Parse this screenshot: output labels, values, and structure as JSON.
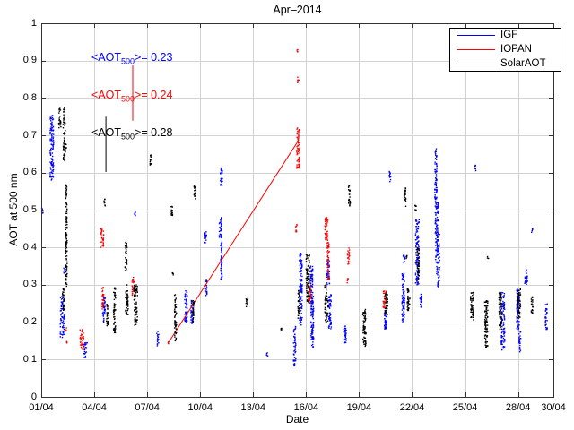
{
  "chart_data": {
    "type": "scatter",
    "title": "Apr–2014",
    "xlabel": "Date",
    "ylabel": "AOT at 500 nm",
    "x_range_days": [
      1,
      30
    ],
    "ylim": [
      0,
      1
    ],
    "grid": true,
    "legend_position": "top-right",
    "x_ticks": [
      {
        "day": 1,
        "label": "01/04"
      },
      {
        "day": 4,
        "label": "04/04"
      },
      {
        "day": 7,
        "label": "07/04"
      },
      {
        "day": 10,
        "label": "10/04"
      },
      {
        "day": 13,
        "label": "13/04"
      },
      {
        "day": 16,
        "label": "16/04"
      },
      {
        "day": 19,
        "label": "19/04"
      },
      {
        "day": 22,
        "label": "22/04"
      },
      {
        "day": 25,
        "label": "25/04"
      },
      {
        "day": 28,
        "label": "28/04"
      },
      {
        "day": 30,
        "label": "30/04"
      }
    ],
    "y_ticks": [
      {
        "value": 0,
        "label": "0"
      },
      {
        "value": 0.1,
        "label": "0.1"
      },
      {
        "value": 0.2,
        "label": "0.2"
      },
      {
        "value": 0.3,
        "label": "0.3"
      },
      {
        "value": 0.4,
        "label": "0.4"
      },
      {
        "value": 0.5,
        "label": "0.5"
      },
      {
        "value": 0.6,
        "label": "0.6"
      },
      {
        "value": 0.7,
        "label": "0.7"
      },
      {
        "value": 0.8,
        "label": "0.8"
      },
      {
        "value": 0.9,
        "label": "0.9"
      },
      {
        "value": 1,
        "label": "1"
      }
    ],
    "annotations": [
      {
        "series": "IGF",
        "pre": "<AOT",
        "sub": "500",
        "post": ">= 0.23",
        "mean": 0.23,
        "color": "#0000ff"
      },
      {
        "series": "IOPAN",
        "pre": "<AOT",
        "sub": "500",
        "post": ">= 0.24",
        "mean": 0.24,
        "color": "#ff0000"
      },
      {
        "series": "SolarAOT",
        "pre": "<AOT",
        "sub": "500",
        "post": ">= 0.28",
        "mean": 0.28,
        "color": "#000000"
      }
    ],
    "series": [
      {
        "name": "IGF",
        "color": "#0000ff",
        "clusters": [
          [
            1.08,
            0.49,
            0.505,
            1
          ],
          [
            1.6,
            0.58,
            0.755,
            2
          ],
          [
            2.2,
            0.155,
            0.27,
            2.5
          ],
          [
            2.3,
            0.33,
            0.345,
            0.8
          ],
          [
            3.5,
            0.103,
            0.145,
            2
          ],
          [
            4.55,
            0.2,
            0.27,
            1.5
          ],
          [
            6.3,
            0.48,
            0.495,
            0.8
          ],
          [
            7.6,
            0.135,
            0.175,
            1.2
          ],
          [
            9.2,
            0.2,
            0.285,
            1.5
          ],
          [
            9.55,
            0.195,
            0.26,
            1.5
          ],
          [
            10.3,
            0.405,
            0.445,
            1
          ],
          [
            10.35,
            0.27,
            0.315,
            1
          ],
          [
            11.15,
            0.425,
            0.48,
            1.5
          ],
          [
            11.2,
            0.31,
            0.415,
            0.7
          ],
          [
            11.2,
            0.56,
            0.615,
            1.2
          ],
          [
            13.8,
            0.11,
            0.12,
            0.7
          ],
          [
            15.32,
            0.08,
            0.092,
            0.7
          ],
          [
            15.35,
            0.095,
            0.19,
            1.3
          ],
          [
            15.7,
            0.19,
            0.385,
            1.5
          ],
          [
            16.3,
            0.25,
            0.35,
            1.5
          ],
          [
            16.35,
            0.13,
            0.27,
            1.5
          ],
          [
            17.25,
            0.3,
            0.375,
            1.5
          ],
          [
            17.35,
            0.18,
            0.275,
            1.5
          ],
          [
            18.2,
            0.14,
            0.19,
            1.5
          ],
          [
            20.5,
            0.18,
            0.24,
            1.5
          ],
          [
            20.75,
            0.575,
            0.605,
            1
          ],
          [
            21.5,
            0.2,
            0.33,
            1.5
          ],
          [
            21.55,
            0.36,
            0.385,
            1
          ],
          [
            22.3,
            0.3,
            0.475,
            2
          ],
          [
            22.5,
            0.24,
            0.28,
            1
          ],
          [
            23.35,
            0.52,
            0.665,
            1.3
          ],
          [
            23.4,
            0.425,
            0.52,
            1.8
          ],
          [
            23.45,
            0.325,
            0.435,
            2.2
          ],
          [
            23.5,
            0.29,
            0.325,
            1
          ],
          [
            25.6,
            0.605,
            0.62,
            0.7
          ],
          [
            27.15,
            0.125,
            0.28,
            2
          ],
          [
            28.0,
            0.175,
            0.29,
            1.5
          ],
          [
            28.1,
            0.12,
            0.175,
            1
          ],
          [
            28.45,
            0.3,
            0.34,
            1.5
          ],
          [
            28.8,
            0.44,
            0.45,
            0.7
          ],
          [
            29.6,
            0.18,
            0.25,
            1.2
          ]
        ],
        "lines": []
      },
      {
        "name": "IOPAN",
        "color": "#ff0000",
        "clusters": [
          [
            2.4,
            0.175,
            0.185,
            0.7
          ],
          [
            2.45,
            0.142,
            0.15,
            0.7
          ],
          [
            3.3,
            0.127,
            0.18,
            2
          ],
          [
            4.45,
            0.4,
            0.45,
            1.8
          ],
          [
            4.5,
            0.235,
            0.3,
            1.2
          ],
          [
            6.2,
            0.27,
            0.32,
            1.3
          ],
          [
            8.2,
            0.142,
            0.148,
            0.7
          ],
          [
            15.45,
            0.44,
            0.462,
            0.9
          ],
          [
            15.5,
            0.923,
            0.932,
            0.7
          ],
          [
            15.55,
            0.84,
            0.856,
            0.7
          ],
          [
            15.55,
            0.61,
            0.72,
            1.6
          ],
          [
            16.2,
            0.25,
            0.3,
            1.5
          ],
          [
            17.15,
            0.42,
            0.48,
            1.8
          ],
          [
            17.25,
            0.31,
            0.42,
            1.2
          ],
          [
            18.35,
            0.305,
            0.318,
            0.8
          ],
          [
            18.4,
            0.355,
            0.4,
            1.2
          ],
          [
            20.45,
            0.235,
            0.285,
            1.8
          ]
        ],
        "lines": [
          [
            8.2,
            0.145,
            15.52,
            0.683
          ],
          [
            6.18,
            0.739,
            6.18,
            0.887
          ]
        ]
      },
      {
        "name": "SolarAOT",
        "color": "#000000",
        "clusters": [
          [
            2.05,
            0.72,
            0.775,
            1.2
          ],
          [
            2.25,
            0.23,
            0.29,
            1
          ],
          [
            2.3,
            0.63,
            0.775,
            1.2
          ],
          [
            2.38,
            0.655,
            0.68,
            1
          ],
          [
            2.42,
            0.295,
            0.57,
            0.9
          ],
          [
            4.6,
            0.51,
            0.53,
            0.9
          ],
          [
            4.75,
            0.19,
            0.25,
            1.2
          ],
          [
            5.15,
            0.17,
            0.295,
            1.2
          ],
          [
            5.8,
            0.335,
            0.415,
            1.2
          ],
          [
            5.85,
            0.22,
            0.3,
            1.5
          ],
          [
            6.35,
            0.19,
            0.3,
            2
          ],
          [
            7.2,
            0.62,
            0.65,
            0.9
          ],
          [
            8.4,
            0.48,
            0.51,
            0.9
          ],
          [
            8.45,
            0.325,
            0.335,
            0.7
          ],
          [
            8.6,
            0.15,
            0.275,
            1.2
          ],
          [
            9.6,
            0.2,
            0.26,
            1.2
          ],
          [
            9.7,
            0.53,
            0.565,
            0.9
          ],
          [
            12.65,
            0.24,
            0.265,
            1.2
          ],
          [
            14.6,
            0.178,
            0.186,
            0.7
          ],
          [
            15.6,
            0.21,
            0.285,
            1.4
          ],
          [
            16.1,
            0.25,
            0.385,
            2
          ],
          [
            17.1,
            0.285,
            0.3,
            1
          ],
          [
            17.15,
            0.2,
            0.28,
            1.8
          ],
          [
            18.45,
            0.51,
            0.565,
            1
          ],
          [
            19.3,
            0.135,
            0.23,
            1.8
          ],
          [
            19.35,
            0.22,
            0.235,
            0.8
          ],
          [
            20.55,
            0.22,
            0.28,
            1.5
          ],
          [
            21.6,
            0.51,
            0.565,
            1
          ],
          [
            21.7,
            0.37,
            0.38,
            0.7
          ],
          [
            21.8,
            0.23,
            0.29,
            1.5
          ],
          [
            22.2,
            0.5,
            0.515,
            0.8
          ],
          [
            22.35,
            0.31,
            0.4,
            1.2
          ],
          [
            25.4,
            0.205,
            0.28,
            1.8
          ],
          [
            26.2,
            0.13,
            0.26,
            1.8
          ],
          [
            26.3,
            0.37,
            0.376,
            0.7
          ],
          [
            27.0,
            0.18,
            0.28,
            1.5
          ],
          [
            28.05,
            0.21,
            0.29,
            1.8
          ],
          [
            28.8,
            0.22,
            0.27,
            1
          ]
        ],
        "lines": [
          [
            4.66,
            0.602,
            4.66,
            0.75
          ]
        ]
      }
    ]
  }
}
